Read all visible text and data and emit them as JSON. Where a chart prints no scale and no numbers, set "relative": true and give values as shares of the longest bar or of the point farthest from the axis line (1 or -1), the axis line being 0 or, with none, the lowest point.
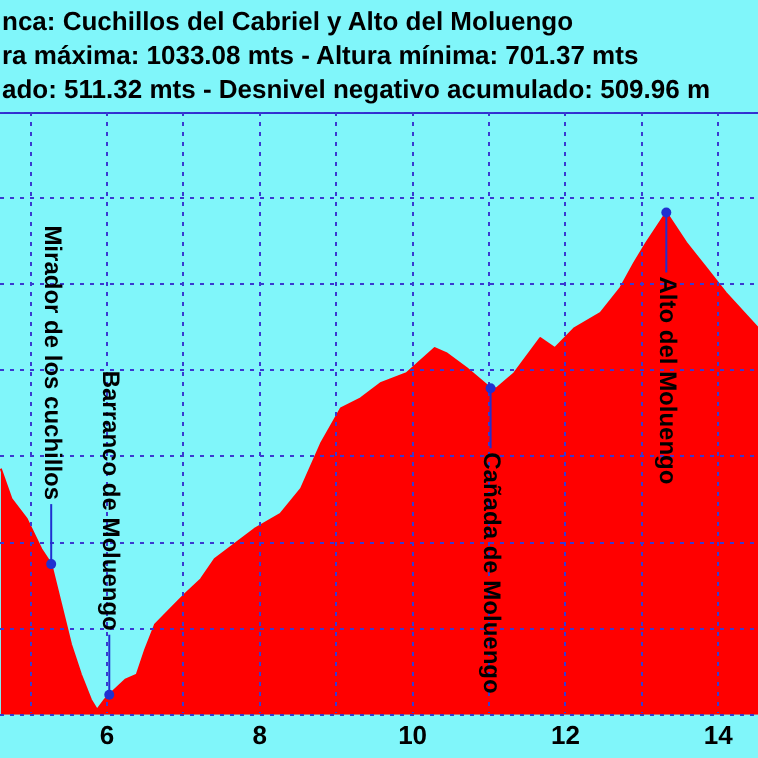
{
  "chart_data": {
    "type": "area",
    "title": "nca:  Cuchillos del Cabriel y Alto del Moluengo",
    "subtitle": "ra máxima: 1033.08 mts - Altura mínima: 701.37 mts",
    "relative": true,
    "grid": true,
    "legend": false,
    "marker": "none",
    "xlim": [
      4.6,
      14.52
    ],
    "xticks": [
      {
        "value": 5,
        "label": null
      },
      6,
      {
        "value": 7,
        "label": null
      },
      8,
      {
        "value": 9,
        "label": null
      },
      10,
      {
        "value": 11,
        "label": null
      },
      12,
      {
        "value": 13,
        "label": null
      },
      14
    ],
    "annotations": [
      "ado: 511.32 mts - Desnivel negativo acumulado: 509.96 m",
      {
        "text": "Mirador de los cuchillos",
        "x": 5.27,
        "y": 0.3
      },
      {
        "text": "Barranco de Moluengo",
        "x": 6.03,
        "y": 0.04
      },
      {
        "text": "Cañada de Moluengo",
        "x": 11.02,
        "y": 0.65
      },
      {
        "text": "Alto del Moluengo",
        "x": 13.32,
        "y": 1
      }
    ],
    "series": [
      {
        "color": "#ff0000",
        "x": [
          4.61,
          4.75,
          4.95,
          5.14,
          5.27,
          5.4,
          5.53,
          5.66,
          5.79,
          5.87,
          5.97,
          6.03,
          6.24,
          6.39,
          6.5,
          6.63,
          6.89,
          7.02,
          7.23,
          7.41,
          7.67,
          7.93,
          8.27,
          8.54,
          8.8,
          9.06,
          9.32,
          9.58,
          9.92,
          10.29,
          10.44,
          10.71,
          11.02,
          11.1,
          11.33,
          11.67,
          11.86,
          12.12,
          12.46,
          12.72,
          12.9,
          13.06,
          13.32,
          13.58,
          13.84,
          14.1,
          14.52
        ],
        "values": [
          0.49,
          0.43,
          0.39,
          0.33,
          0.3,
          0.22,
          0.14,
          0.08,
          0.03,
          0.01,
          0.03,
          0.04,
          0.07,
          0.08,
          0.13,
          0.18,
          0.22,
          0.24,
          0.27,
          0.31,
          0.34,
          0.37,
          0.4,
          0.45,
          0.54,
          0.61,
          0.63,
          0.66,
          0.68,
          0.73,
          0.72,
          0.69,
          0.65,
          0.65,
          0.68,
          0.75,
          0.73,
          0.77,
          0.8,
          0.85,
          0.9,
          0.94,
          1,
          0.94,
          0.89,
          0.84,
          0.77
        ]
      }
    ]
  }
}
